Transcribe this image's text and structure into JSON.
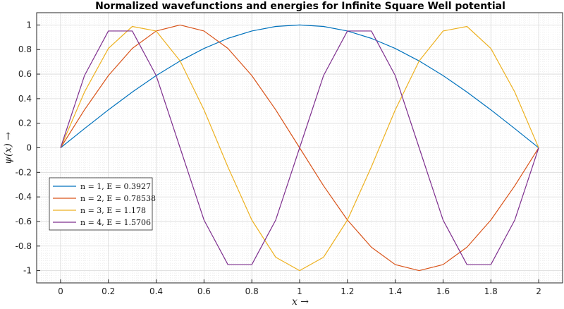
{
  "chart_data": {
    "type": "line",
    "title": "Normalized wavefunctions and energies for Infinite Square Well potential",
    "xlabel": "x →",
    "ylabel": "ψ(x) →",
    "xlim": [
      -0.1,
      2.1
    ],
    "ylim": [
      -1.1,
      1.1
    ],
    "xticks": [
      "0",
      "0.2",
      "0.4",
      "0.6",
      "0.8",
      "1",
      "1.2",
      "1.4",
      "1.6",
      "1.8",
      "2"
    ],
    "yticks": [
      "1",
      "0.8",
      "0.6",
      "0.4",
      "0.2",
      "0",
      "-0.2",
      "-0.4",
      "-0.6",
      "-0.8",
      "-1"
    ],
    "grid": true,
    "minor_grid": true,
    "legend_position": "lower-left",
    "x": [
      0,
      0.1,
      0.2,
      0.3,
      0.4,
      0.5,
      0.6,
      0.7,
      0.8,
      0.9,
      1.0,
      1.1,
      1.2,
      1.3,
      1.4,
      1.5,
      1.6,
      1.7,
      1.8,
      1.9,
      2.0
    ],
    "series": [
      {
        "name": "n = 1, E = 0.3927",
        "color": "#0072BD",
        "values": [
          0,
          0.156,
          0.309,
          0.454,
          0.588,
          0.707,
          0.809,
          0.891,
          0.951,
          0.988,
          1.0,
          0.988,
          0.951,
          0.891,
          0.809,
          0.707,
          0.588,
          0.454,
          0.309,
          0.156,
          0
        ]
      },
      {
        "name": "n = 2, E = 0.78538",
        "color": "#D95319",
        "values": [
          0,
          0.309,
          0.588,
          0.809,
          0.951,
          1.0,
          0.951,
          0.809,
          0.588,
          0.309,
          0,
          -0.309,
          -0.588,
          -0.809,
          -0.951,
          -1.0,
          -0.951,
          -0.809,
          -0.588,
          -0.309,
          0
        ]
      },
      {
        "name": "n = 3, E = 1.178",
        "color": "#EDB120",
        "values": [
          0,
          0.454,
          0.809,
          0.988,
          0.951,
          0.707,
          0.309,
          -0.156,
          -0.588,
          -0.891,
          -1.0,
          -0.891,
          -0.588,
          -0.156,
          0.309,
          0.707,
          0.951,
          0.988,
          0.809,
          0.454,
          0
        ]
      },
      {
        "name": "n = 4, E = 1.5706",
        "color": "#7E2F8E",
        "values": [
          0,
          0.588,
          0.951,
          0.951,
          0.588,
          0,
          -0.588,
          -0.951,
          -0.951,
          -0.588,
          0,
          0.588,
          0.951,
          0.951,
          0.588,
          0,
          -0.588,
          -0.951,
          -0.951,
          -0.588,
          0
        ]
      }
    ]
  }
}
